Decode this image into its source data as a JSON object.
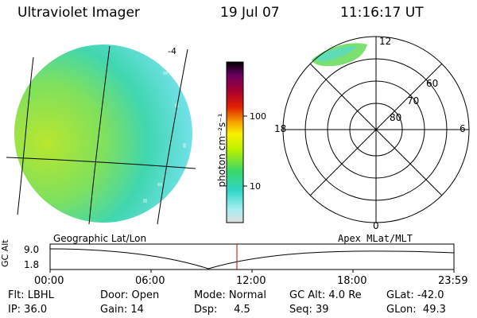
{
  "header": {
    "title": "Ultraviolet Imager",
    "date": "19 Jul 07",
    "time": "11:16:17 UT"
  },
  "colorbar": {
    "unit_label": "photon cm⁻²s⁻¹",
    "ticks": [
      "100",
      "10"
    ]
  },
  "geo_map": {
    "caption": "Geographic Lat/Lon",
    "corner_label": "-4"
  },
  "polar_plot": {
    "caption": "Apex  MLat/MLT",
    "mlt_labels": {
      "top": "12",
      "bottom": "0",
      "left": "18",
      "right": "6"
    },
    "lat_labels": [
      "60",
      "70",
      "80"
    ]
  },
  "altitude_strip": {
    "ylabel": "GC Alt",
    "ticks": [
      "9.0",
      "1.8"
    ],
    "time_ticks": [
      "00:00",
      "06:00",
      "12:00",
      "18:00",
      "23:59"
    ]
  },
  "status": {
    "flt": "Flt: LBHL",
    "ip": "IP: 36.0",
    "door": "Door: Open",
    "gain": "Gain: 14",
    "mode": "Mode: Normal",
    "dsp": "Dsp:     4.5",
    "gc_alt": "GC Alt: 4.0 Re",
    "seq": "Seq: 39",
    "glat": "GLat: -42.0",
    "glon": "GLon:  49.3"
  },
  "colors": {
    "accent_marker": "#c00000",
    "aurora_low": "#5fe0d8",
    "aurora_mid": "#8fe65a"
  }
}
